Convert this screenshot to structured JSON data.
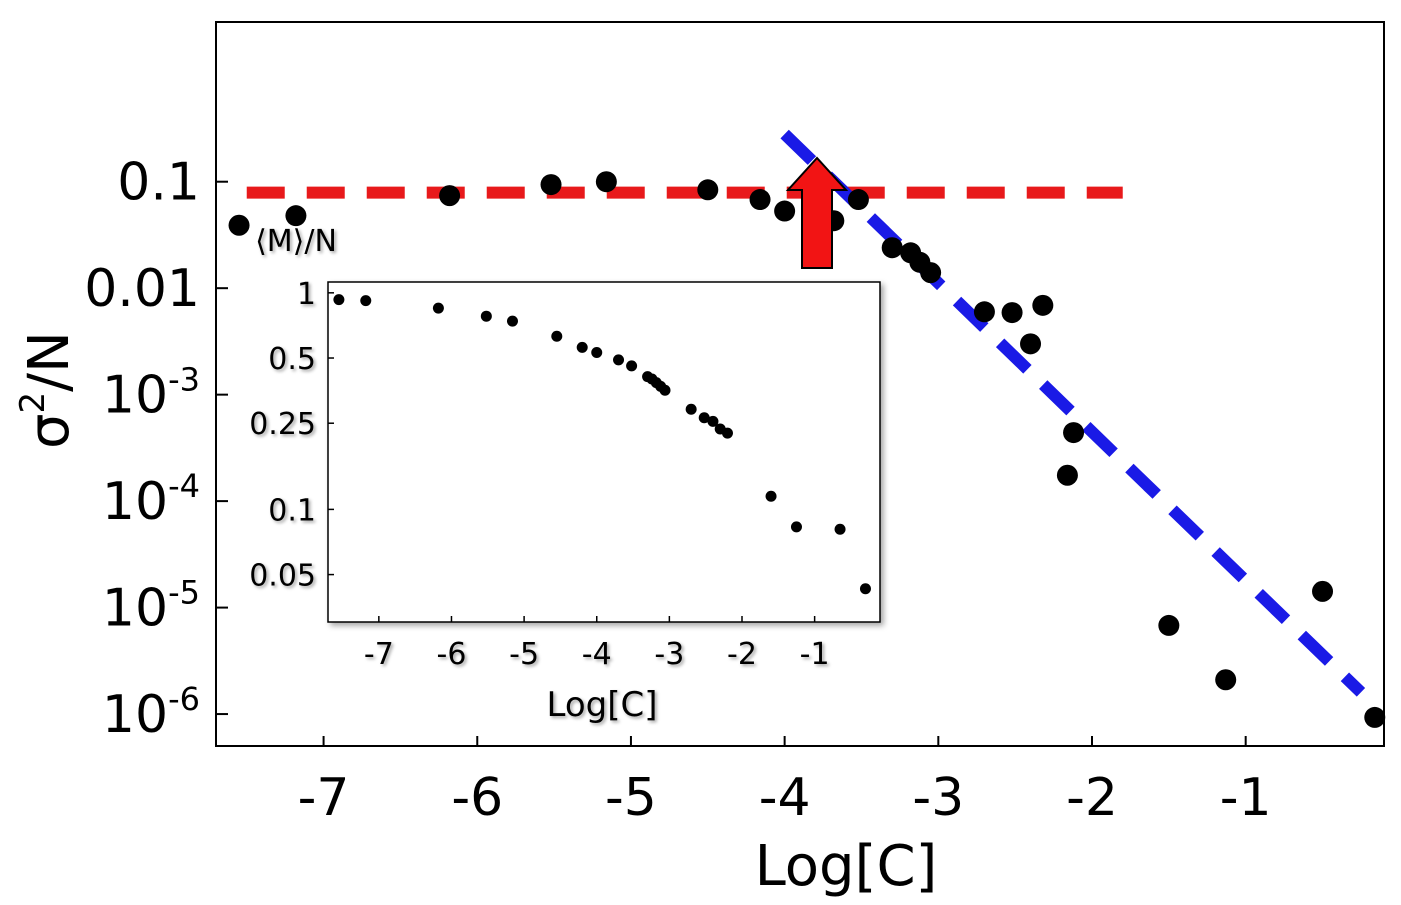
{
  "chart_data": [
    {
      "id": "main",
      "type": "scatter",
      "xlabel": "Log[C]",
      "ylabel_base": "σ",
      "ylabel_sup": "2",
      "ylabel_rest": "/N",
      "y_scale": "log",
      "xlim": [
        -7.7,
        -0.1
      ],
      "ylim_log10": [
        -6.3,
        0.5
      ],
      "x_ticks": [
        {
          "value": -7,
          "label": "-7"
        },
        {
          "value": -6,
          "label": "-6"
        },
        {
          "value": -5,
          "label": "-5"
        },
        {
          "value": -4,
          "label": "-4"
        },
        {
          "value": -3,
          "label": "-3"
        },
        {
          "value": -2,
          "label": "-2"
        },
        {
          "value": -1,
          "label": "-1"
        }
      ],
      "y_ticks": [
        {
          "log10": -1,
          "label": "0.1",
          "sup": ""
        },
        {
          "log10": -2,
          "label": "0.01",
          "sup": ""
        },
        {
          "log10": -3,
          "label": "10",
          "sup": "-3"
        },
        {
          "log10": -4,
          "label": "10",
          "sup": "-4"
        },
        {
          "log10": -5,
          "label": "10",
          "sup": "-5"
        },
        {
          "log10": -6,
          "label": "10",
          "sup": "-6"
        }
      ],
      "points": [
        {
          "x": -7.55,
          "y": 0.039
        },
        {
          "x": -7.18,
          "y": 0.048
        },
        {
          "x": -6.18,
          "y": 0.074
        },
        {
          "x": -5.52,
          "y": 0.094
        },
        {
          "x": -5.16,
          "y": 0.1
        },
        {
          "x": -4.5,
          "y": 0.084
        },
        {
          "x": -4.16,
          "y": 0.068
        },
        {
          "x": -4.0,
          "y": 0.053
        },
        {
          "x": -3.68,
          "y": 0.043
        },
        {
          "x": -3.52,
          "y": 0.068
        },
        {
          "x": -3.3,
          "y": 0.024
        },
        {
          "x": -3.18,
          "y": 0.0215
        },
        {
          "x": -3.12,
          "y": 0.0175
        },
        {
          "x": -3.05,
          "y": 0.014
        },
        {
          "x": -2.7,
          "y": 0.006
        },
        {
          "x": -2.52,
          "y": 0.0059
        },
        {
          "x": -2.4,
          "y": 0.003
        },
        {
          "x": -2.32,
          "y": 0.0069
        },
        {
          "x": -2.12,
          "y": 0.00044
        },
        {
          "x": -2.16,
          "y": 0.000175
        },
        {
          "x": -1.5,
          "y": 6.8e-06
        },
        {
          "x": -1.13,
          "y": 2.1e-06
        },
        {
          "x": -0.5,
          "y": 1.42e-05
        },
        {
          "x": -0.16,
          "y": 9.3e-07
        }
      ],
      "fit_lines": [
        {
          "name": "plateau",
          "color": "#e8191b",
          "x": [
            -7.5,
            -1.8
          ],
          "y": [
            0.079,
            0.079
          ]
        },
        {
          "name": "power-law decay",
          "color": "#1a1ae6",
          "x": [
            -4.0,
            -0.25
          ],
          "y": [
            0.28,
            1.6e-06
          ]
        }
      ],
      "arrow_color": "#f21414"
    },
    {
      "id": "inset",
      "type": "scatter",
      "title": "⟨M⟩/N",
      "xlabel": "Log[C]",
      "y_scale": "log",
      "xlim": [
        -7.7,
        -0.1
      ],
      "ylim_log10": [
        -1.52,
        0.05
      ],
      "x_ticks": [
        {
          "value": -7,
          "label": "-7"
        },
        {
          "value": -6,
          "label": "-6"
        },
        {
          "value": -5,
          "label": "-5"
        },
        {
          "value": -4,
          "label": "-4"
        },
        {
          "value": -3,
          "label": "-3"
        },
        {
          "value": -2,
          "label": "-2"
        },
        {
          "value": -1,
          "label": "-1"
        }
      ],
      "y_ticks": [
        {
          "value": 1,
          "label": "1"
        },
        {
          "value": 0.5,
          "label": "0.5"
        },
        {
          "value": 0.25,
          "label": "0.25"
        },
        {
          "value": 0.1,
          "label": "0.1"
        },
        {
          "value": 0.05,
          "label": "0.05"
        }
      ],
      "points": [
        {
          "x": -7.55,
          "y": 0.93
        },
        {
          "x": -7.18,
          "y": 0.92
        },
        {
          "x": -6.18,
          "y": 0.85
        },
        {
          "x": -5.52,
          "y": 0.78
        },
        {
          "x": -5.16,
          "y": 0.74
        },
        {
          "x": -4.55,
          "y": 0.63
        },
        {
          "x": -4.2,
          "y": 0.56
        },
        {
          "x": -4.0,
          "y": 0.53
        },
        {
          "x": -3.7,
          "y": 0.49
        },
        {
          "x": -3.52,
          "y": 0.46
        },
        {
          "x": -3.3,
          "y": 0.41
        },
        {
          "x": -3.24,
          "y": 0.4
        },
        {
          "x": -3.18,
          "y": 0.385
        },
        {
          "x": -3.12,
          "y": 0.37
        },
        {
          "x": -3.06,
          "y": 0.355
        },
        {
          "x": -2.7,
          "y": 0.29
        },
        {
          "x": -2.52,
          "y": 0.265
        },
        {
          "x": -2.4,
          "y": 0.255
        },
        {
          "x": -2.3,
          "y": 0.235
        },
        {
          "x": -2.2,
          "y": 0.225
        },
        {
          "x": -1.6,
          "y": 0.115
        },
        {
          "x": -1.25,
          "y": 0.083
        },
        {
          "x": -0.65,
          "y": 0.081
        },
        {
          "x": -0.3,
          "y": 0.043
        }
      ]
    }
  ]
}
